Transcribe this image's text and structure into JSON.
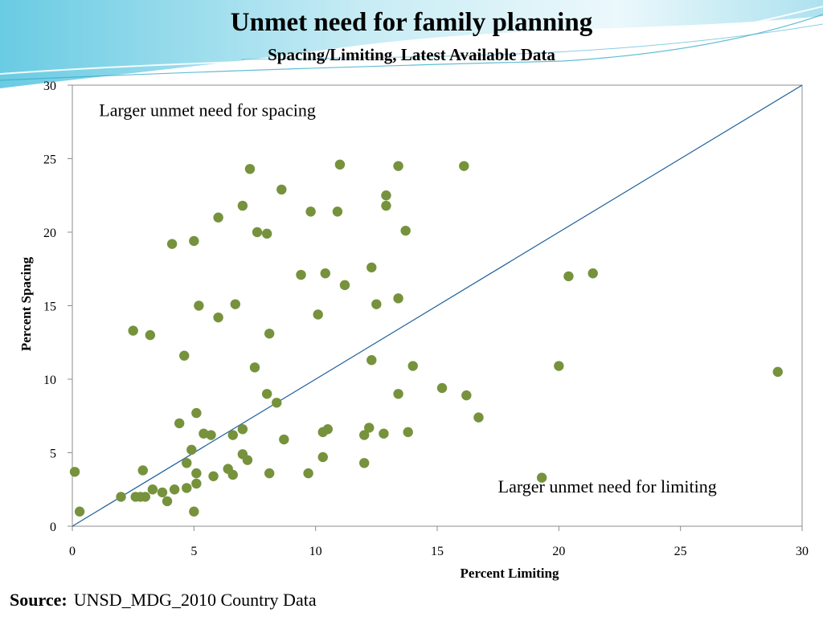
{
  "header": {
    "title": "Unmet need for family planning",
    "subtitle": "Spacing/Limiting, Latest Available Data"
  },
  "source": {
    "label": "Source:",
    "text": "UNSD_MDG_2010 Country Data"
  },
  "colors": {
    "point": "#76923c",
    "diagonal": "#1f5f9a",
    "axis": "#8c8c8c",
    "header_wave": "#5fc4dc"
  },
  "chart_data": {
    "type": "scatter",
    "title": "Unmet need for family planning",
    "subtitle": "Spacing/Limiting, Latest Available Data",
    "xlabel": "Percent Limiting",
    "ylabel": "Percent Spacing",
    "xlim": [
      0,
      30
    ],
    "ylim": [
      0,
      30
    ],
    "xticks": [
      0,
      5,
      10,
      15,
      20,
      25,
      30
    ],
    "yticks": [
      0,
      5,
      10,
      15,
      20,
      25,
      30
    ],
    "grid": false,
    "reference_line": {
      "from": [
        0,
        0
      ],
      "to": [
        30,
        30
      ]
    },
    "annotations": [
      {
        "text": "Larger unmet need for spacing",
        "x": 1.1,
        "y": 27.9
      },
      {
        "text": "Larger unmet need for limiting",
        "x": 17.5,
        "y": 2.3
      }
    ],
    "series": [
      {
        "points": [
          [
            0.1,
            3.7
          ],
          [
            0.3,
            1.0
          ],
          [
            2.0,
            2.0
          ],
          [
            2.6,
            2.0
          ],
          [
            2.8,
            2.0
          ],
          [
            3.0,
            2.0
          ],
          [
            2.9,
            3.8
          ],
          [
            3.3,
            2.5
          ],
          [
            3.7,
            2.3
          ],
          [
            3.9,
            1.7
          ],
          [
            4.2,
            2.5
          ],
          [
            4.7,
            2.6
          ],
          [
            4.7,
            4.3
          ],
          [
            4.9,
            5.2
          ],
          [
            5.0,
            1.0
          ],
          [
            5.1,
            2.9
          ],
          [
            5.1,
            3.6
          ],
          [
            5.1,
            7.7
          ],
          [
            5.2,
            15.0
          ],
          [
            5.4,
            6.3
          ],
          [
            5.7,
            6.2
          ],
          [
            5.8,
            3.4
          ],
          [
            4.4,
            7.0
          ],
          [
            4.6,
            11.6
          ],
          [
            2.5,
            13.3
          ],
          [
            3.2,
            13.0
          ],
          [
            4.1,
            19.2
          ],
          [
            5.0,
            19.4
          ],
          [
            6.0,
            21.0
          ],
          [
            6.0,
            14.2
          ],
          [
            6.4,
            3.9
          ],
          [
            6.6,
            3.5
          ],
          [
            6.6,
            6.2
          ],
          [
            6.7,
            15.1
          ],
          [
            7.0,
            4.9
          ],
          [
            7.0,
            6.6
          ],
          [
            7.2,
            4.5
          ],
          [
            7.0,
            21.8
          ],
          [
            7.3,
            24.3
          ],
          [
            7.5,
            10.8
          ],
          [
            7.6,
            20.0
          ],
          [
            8.0,
            19.9
          ],
          [
            8.0,
            9.0
          ],
          [
            8.1,
            3.6
          ],
          [
            8.1,
            13.1
          ],
          [
            8.4,
            8.4
          ],
          [
            8.6,
            22.9
          ],
          [
            8.7,
            5.9
          ],
          [
            9.4,
            17.1
          ],
          [
            9.7,
            3.6
          ],
          [
            9.8,
            21.4
          ],
          [
            10.1,
            14.4
          ],
          [
            10.3,
            4.7
          ],
          [
            10.3,
            6.4
          ],
          [
            10.4,
            17.2
          ],
          [
            10.5,
            6.6
          ],
          [
            10.9,
            21.4
          ],
          [
            11.0,
            24.6
          ],
          [
            11.2,
            16.4
          ],
          [
            12.0,
            4.3
          ],
          [
            12.0,
            6.2
          ],
          [
            12.2,
            6.7
          ],
          [
            12.3,
            11.3
          ],
          [
            12.3,
            17.6
          ],
          [
            12.5,
            15.1
          ],
          [
            12.8,
            6.3
          ],
          [
            12.9,
            21.8
          ],
          [
            12.9,
            22.5
          ],
          [
            13.4,
            24.5
          ],
          [
            13.4,
            15.5
          ],
          [
            13.4,
            9.0
          ],
          [
            13.7,
            20.1
          ],
          [
            13.8,
            6.4
          ],
          [
            14.0,
            10.9
          ],
          [
            15.2,
            9.4
          ],
          [
            16.1,
            24.5
          ],
          [
            16.2,
            8.9
          ],
          [
            16.7,
            7.4
          ],
          [
            19.3,
            3.3
          ],
          [
            20.0,
            10.9
          ],
          [
            20.4,
            17.0
          ],
          [
            21.4,
            17.2
          ],
          [
            29.0,
            10.5
          ]
        ]
      }
    ]
  }
}
